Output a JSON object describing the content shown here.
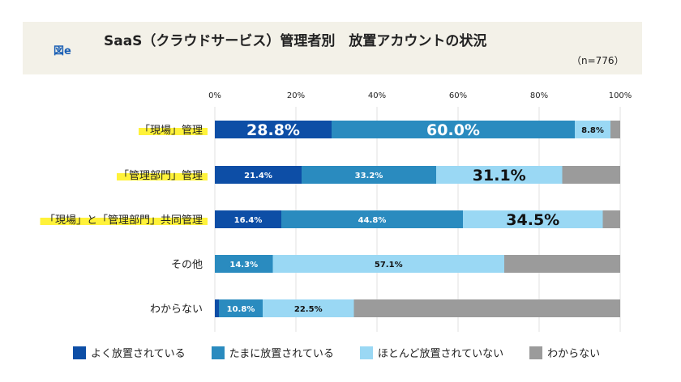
{
  "figure_label": "図e",
  "chart_data": {
    "type": "bar",
    "orientation": "horizontal-stacked",
    "title": "SaaS（クラウドサービス）管理者別　放置アカウントの状況",
    "note": "（n=776）",
    "xlim": [
      0,
      100
    ],
    "ticks": [
      "0%",
      "20%",
      "40%",
      "60%",
      "80%",
      "100%"
    ],
    "grid": true,
    "legend_placement": "bottom",
    "categories": [
      "「現場」管理",
      "「管理部門」管理",
      "「現場」と「管理部門」共同管理",
      "その他",
      "わからない"
    ],
    "highlighted_categories": [
      0,
      1,
      2
    ],
    "series": [
      {
        "name": "よく放置されている",
        "color": "#0d4ea6",
        "values": [
          28.8,
          21.4,
          16.4,
          0,
          1.0
        ],
        "labels": [
          "28.8%",
          "21.4%",
          "16.4%",
          "",
          ""
        ]
      },
      {
        "name": "たまに放置されている",
        "color": "#2a8bbf",
        "values": [
          60.0,
          33.2,
          44.8,
          14.3,
          10.8
        ],
        "labels": [
          "60.0%",
          "33.2%",
          "44.8%",
          "14.3%",
          "10.8%"
        ]
      },
      {
        "name": "ほとんど放置されていない",
        "color": "#9ad8f4",
        "values": [
          8.8,
          31.1,
          34.5,
          57.1,
          22.5
        ],
        "labels": [
          "8.8%",
          "31.1%",
          "34.5%",
          "57.1%",
          "22.5%"
        ]
      },
      {
        "name": "わからない",
        "color": "#9b9b9b",
        "values": [
          2.4,
          14.3,
          4.3,
          28.6,
          65.7
        ],
        "labels": [
          "",
          "",
          "",
          "",
          ""
        ]
      }
    ],
    "big_labels": [
      [
        0,
        0
      ],
      [
        0,
        1
      ],
      [
        1,
        2
      ],
      [
        2,
        2
      ]
    ]
  }
}
